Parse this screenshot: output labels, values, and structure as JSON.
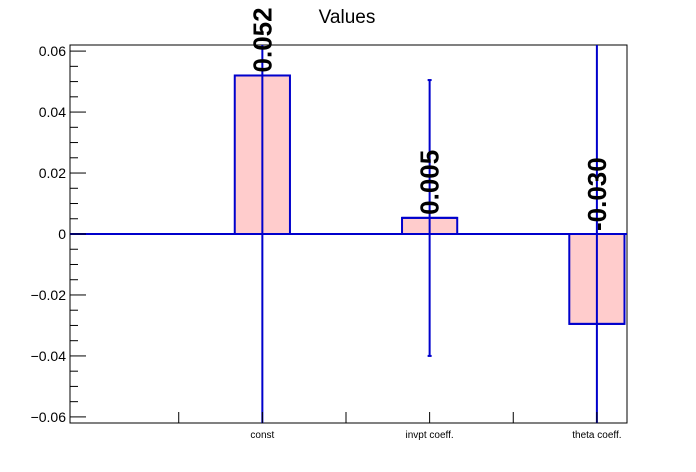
{
  "chart_data": {
    "type": "bar",
    "title": "Values",
    "xlabel": "",
    "ylabel": "",
    "categories": [
      "const",
      "invpt coeff.",
      "theta coeff."
    ],
    "values": [
      0.052,
      0.0053,
      -0.0295
    ],
    "data_labels": [
      "0.052",
      "0.005",
      "-0.030"
    ],
    "error_low": [
      -0.062,
      -0.04,
      -0.062
    ],
    "error_high": [
      0.062,
      0.0505,
      0.062
    ],
    "ylim": [
      -0.062,
      0.062
    ],
    "yticks": [
      -0.06,
      -0.04,
      -0.02,
      0,
      0.02,
      0.04,
      0.06
    ],
    "ytick_labels": [
      "−0.06",
      "−0.04",
      "−0.02",
      "0",
      "0.02",
      "0.04",
      "0.06"
    ],
    "grid": false,
    "colors": {
      "bar_fill": "#ffcccc",
      "bar_edge": "#0000cc",
      "error_bar": "#0000cc",
      "axis": "#000000"
    }
  }
}
